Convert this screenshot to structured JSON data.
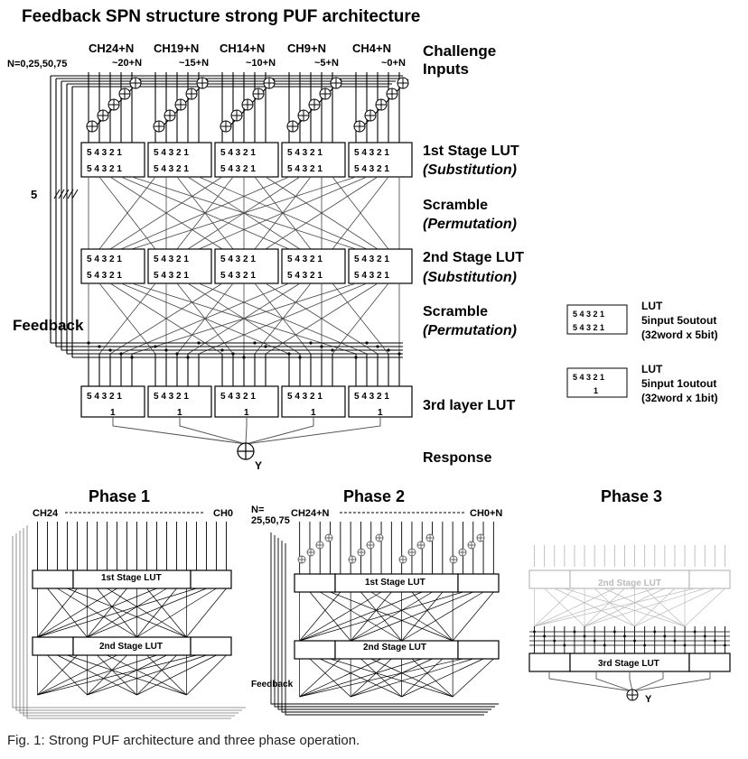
{
  "title": "Feedback SPN structure strong PUF architecture",
  "n_values": "N=0,25,50,75",
  "challenge_groups": [
    {
      "label": "CH24+N",
      "sub": "~20+N"
    },
    {
      "label": "CH19+N",
      "sub": "~15+N"
    },
    {
      "label": "CH14+N",
      "sub": "~10+N"
    },
    {
      "label": "CH9+N",
      "sub": "~5+N"
    },
    {
      "label": "CH4+N",
      "sub": "~0+N"
    }
  ],
  "challenge_label": [
    "Challenge",
    "Inputs"
  ],
  "bus_width_label": "5",
  "feedback_label": "Feedback",
  "lut_digits": "5 4 3 2 1",
  "lut_one": "1",
  "stage_labels": {
    "stage1": [
      "1st Stage LUT",
      "(Substitution)"
    ],
    "scramble1": [
      "Scramble",
      "(Permutation)"
    ],
    "stage2": [
      "2nd Stage LUT",
      "(Substitution)"
    ],
    "scramble2": [
      "Scramble",
      "(Permutation)"
    ],
    "stage3": "3rd layer LUT",
    "response": "Response"
  },
  "output_label": "Y",
  "legend": [
    {
      "title": "LUT",
      "line1": "5input 5outout",
      "line2": "(32word x 5bit)"
    },
    {
      "title": "LUT",
      "line1": "5input 1outout",
      "line2": "(32word x 1bit)"
    }
  ],
  "phases": [
    {
      "title": "Phase 1",
      "left_label": "CH24",
      "right_label": "CH0",
      "lut1": "1st Stage LUT",
      "lut2": "2nd Stage LUT"
    },
    {
      "title": "Phase 2",
      "n_label": [
        "N=",
        "25,50,75"
      ],
      "left_label": "CH24+N",
      "right_label": "CH0+N",
      "lut1": "1st Stage LUT",
      "lut2": "2nd Stage LUT",
      "feedback": "Feedback"
    },
    {
      "title": "Phase 3",
      "lut2": "2nd Stage LUT",
      "lut3": "3rd Stage LUT",
      "output": "Y"
    }
  ],
  "caption": "Fig. 1: Strong PUF architecture and three phase operation."
}
